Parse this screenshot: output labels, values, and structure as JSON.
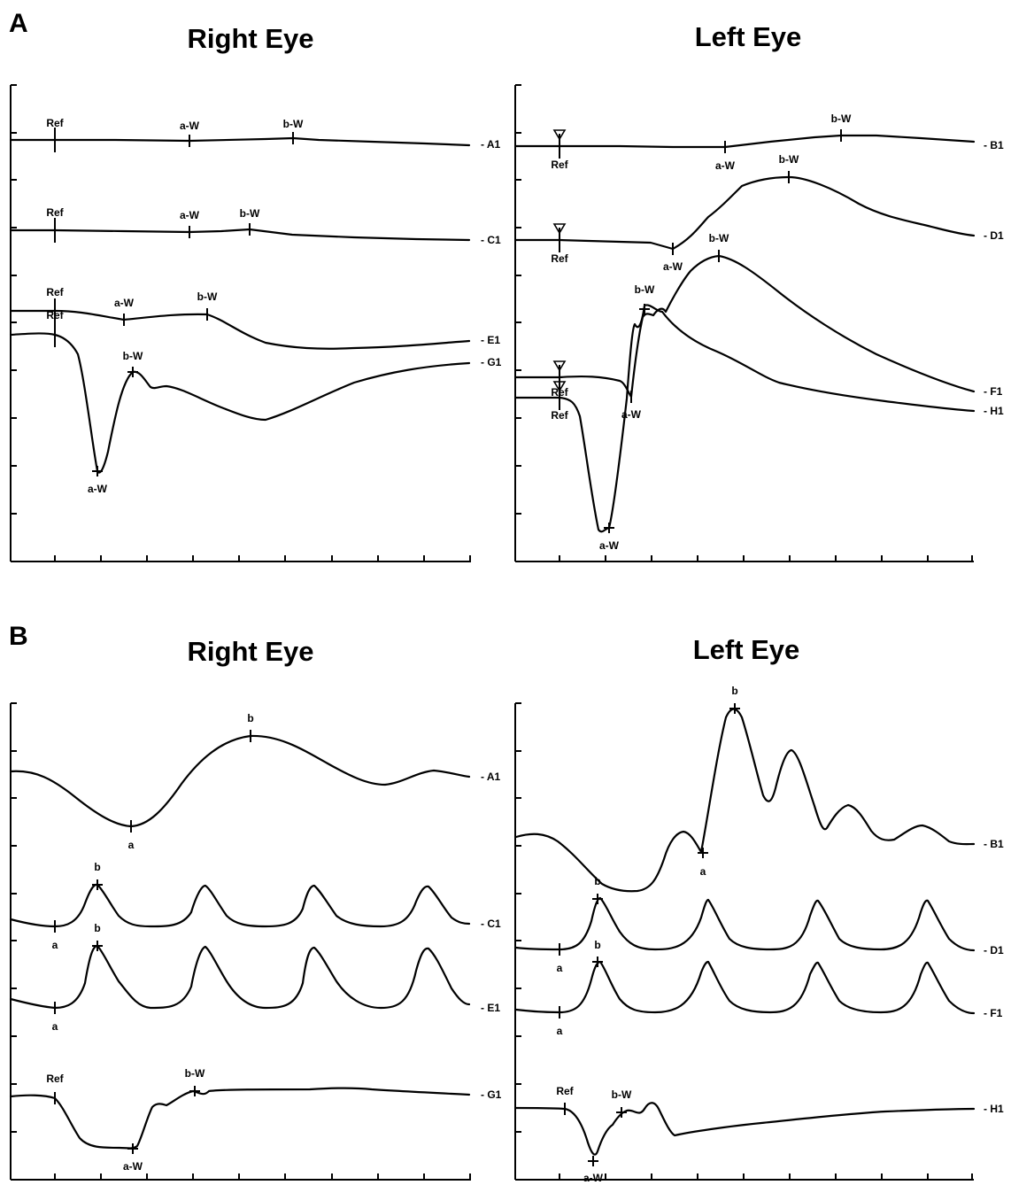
{
  "sections": [
    {
      "letter": "A",
      "panels": [
        {
          "title": "Right Eye",
          "traces": [
            {
              "label": "A1",
              "markers": [
                {
                  "text": "Ref",
                  "type": "ref"
                },
                {
                  "text": "a-W",
                  "type": "tick"
                },
                {
                  "text": "b-W",
                  "type": "tick"
                }
              ]
            },
            {
              "label": "C1",
              "markers": [
                {
                  "text": "Ref",
                  "type": "ref"
                },
                {
                  "text": "a-W",
                  "type": "tick"
                },
                {
                  "text": "b-W",
                  "type": "tick"
                }
              ]
            },
            {
              "label": "E1",
              "markers": [
                {
                  "text": "Ref",
                  "type": "ref"
                },
                {
                  "text": "a-W",
                  "type": "tick"
                },
                {
                  "text": "b-W",
                  "type": "tick"
                }
              ]
            },
            {
              "label": "G1",
              "markers": [
                {
                  "text": "Ref",
                  "type": "ref"
                },
                {
                  "text": "a-W",
                  "type": "cross"
                },
                {
                  "text": "b-W",
                  "type": "cross"
                }
              ]
            }
          ]
        },
        {
          "title": "Left Eye",
          "traces": [
            {
              "label": "B1",
              "markers": [
                {
                  "text": "Ref",
                  "type": "ref"
                },
                {
                  "text": "a-W",
                  "type": "tick"
                },
                {
                  "text": "b-W",
                  "type": "tick"
                }
              ]
            },
            {
              "label": "D1",
              "markers": [
                {
                  "text": "Ref",
                  "type": "ref"
                },
                {
                  "text": "a-W",
                  "type": "tick"
                },
                {
                  "text": "b-W",
                  "type": "tick"
                }
              ]
            },
            {
              "label": "F1",
              "markers": [
                {
                  "text": "Ref",
                  "type": "ref"
                },
                {
                  "text": "a-W",
                  "type": "tick"
                },
                {
                  "text": "b-W",
                  "type": "tick"
                }
              ]
            },
            {
              "label": "H1",
              "markers": [
                {
                  "text": "Ref",
                  "type": "ref"
                },
                {
                  "text": "a-W",
                  "type": "cross"
                },
                {
                  "text": "b-W",
                  "type": "cross"
                }
              ]
            }
          ]
        }
      ]
    },
    {
      "letter": "B",
      "panels": [
        {
          "title": "Right Eye",
          "traces": [
            {
              "label": "A1",
              "markers": [
                {
                  "text": "a",
                  "type": "tick"
                },
                {
                  "text": "b",
                  "type": "tick"
                }
              ]
            },
            {
              "label": "C1",
              "markers": [
                {
                  "text": "a",
                  "type": "tick"
                },
                {
                  "text": "b",
                  "type": "cross"
                }
              ]
            },
            {
              "label": "E1",
              "markers": [
                {
                  "text": "a",
                  "type": "tick"
                },
                {
                  "text": "b",
                  "type": "cross"
                }
              ]
            },
            {
              "label": "G1",
              "markers": [
                {
                  "text": "Ref",
                  "type": "tick"
                },
                {
                  "text": "a-W",
                  "type": "cross"
                },
                {
                  "text": "b-W",
                  "type": "cross"
                }
              ]
            }
          ]
        },
        {
          "title": "Left Eye",
          "traces": [
            {
              "label": "B1",
              "markers": [
                {
                  "text": "a",
                  "type": "cross"
                },
                {
                  "text": "b",
                  "type": "cross"
                }
              ]
            },
            {
              "label": "D1",
              "markers": [
                {
                  "text": "a",
                  "type": "tick"
                },
                {
                  "text": "b",
                  "type": "cross"
                }
              ]
            },
            {
              "label": "F1",
              "markers": [
                {
                  "text": "a",
                  "type": "tick"
                },
                {
                  "text": "b",
                  "type": "cross"
                }
              ]
            },
            {
              "label": "H1",
              "markers": [
                {
                  "text": "Ref",
                  "type": "tick"
                },
                {
                  "text": "a-W",
                  "type": "cross"
                },
                {
                  "text": "b-W",
                  "type": "cross"
                }
              ]
            }
          ]
        }
      ]
    }
  ],
  "chart_data": [
    {
      "type": "line",
      "section": "A",
      "title": "Right Eye",
      "xlabel": "",
      "ylabel": "",
      "grid": false,
      "axis_tick_counts": {
        "x": 10,
        "y": 9
      },
      "series": [
        {
          "name": "A1",
          "x": [
            0,
            0.5,
            1,
            1.5,
            2,
            2.5,
            3,
            3.5,
            4,
            4.5,
            5
          ],
          "y": [
            0.25,
            0.25,
            0.2,
            0.15,
            0.1,
            0.1,
            0.0,
            -0.1,
            -0.15,
            -0.15,
            -0.15
          ]
        },
        {
          "name": "C1",
          "x": [
            0,
            1,
            2,
            3,
            4,
            5
          ],
          "y": [
            0.4,
            0.35,
            0.2,
            0.2,
            -0.25,
            -0.3
          ]
        },
        {
          "name": "E1",
          "x": [
            0,
            0.5,
            1,
            1.5,
            2,
            2.5,
            3,
            3.5,
            4,
            4.5,
            5
          ],
          "y": [
            0.3,
            0.25,
            0.0,
            0.2,
            0.15,
            -0.6,
            -0.85,
            -0.8,
            -0.7,
            -0.6,
            -0.6
          ]
        },
        {
          "name": "G1",
          "x": [
            0,
            0.5,
            1,
            1.5,
            2,
            2.5,
            3,
            3.5,
            4,
            4.5,
            5
          ],
          "y": [
            0.3,
            0.25,
            -2.9,
            -0.55,
            -0.9,
            -1.35,
            -1.7,
            -1.2,
            -0.7,
            -0.5,
            -0.5
          ]
        }
      ]
    },
    {
      "type": "line",
      "section": "A",
      "title": "Left Eye",
      "xlabel": "",
      "ylabel": "",
      "grid": false,
      "axis_tick_counts": {
        "x": 10,
        "y": 9
      },
      "series": [
        {
          "name": "B1",
          "x": [
            0,
            1,
            2,
            3,
            4,
            5
          ],
          "y": [
            0.1,
            0.1,
            0.05,
            0.1,
            0.25,
            0.15
          ]
        },
        {
          "name": "D1",
          "x": [
            0,
            1,
            2,
            3,
            4,
            5
          ],
          "y": [
            0.15,
            0.0,
            1.25,
            1.3,
            0.95,
            0.15
          ]
        },
        {
          "name": "F1",
          "x": [
            0,
            1,
            1.5,
            2,
            3,
            4,
            5
          ],
          "y": [
            0.1,
            0.0,
            1.7,
            3.0,
            2.2,
            1.2,
            0.0
          ]
        },
        {
          "name": "H1",
          "x": [
            0,
            0.5,
            1,
            1.5,
            2,
            3,
            4,
            5
          ],
          "y": [
            0.0,
            -2.75,
            0.0,
            1.8,
            1.2,
            0.3,
            0.0,
            -0.3
          ]
        }
      ]
    },
    {
      "type": "line",
      "section": "B",
      "title": "Right Eye",
      "xlabel": "",
      "ylabel": "",
      "grid": false,
      "axis_tick_counts": {
        "x": 10,
        "y": 10
      },
      "series": [
        {
          "name": "A1",
          "x": [
            0,
            1,
            1.4,
            2,
            2.6,
            3,
            3.5,
            4,
            4.5,
            5
          ],
          "y": [
            0.0,
            -0.8,
            -1.2,
            0.0,
            0.8,
            0.5,
            -0.1,
            -0.3,
            0.0,
            -0.1
          ]
        },
        {
          "name": "C1",
          "x": [
            0,
            0.5,
            1,
            1.5,
            2,
            2.5,
            3,
            3.5,
            4,
            4.5,
            5
          ],
          "y": [
            0.0,
            0.0,
            0.85,
            0.0,
            0.0,
            0.85,
            0.0,
            0.85,
            0.0,
            0.85,
            0.0
          ]
        },
        {
          "name": "E1",
          "x": [
            0,
            0.5,
            1,
            1.5,
            2,
            2.5,
            3,
            3.5,
            4,
            4.5,
            5
          ],
          "y": [
            0.0,
            0.0,
            0.85,
            0.0,
            0.0,
            0.85,
            0.0,
            0.85,
            0.0,
            0.85,
            0.0
          ]
        },
        {
          "name": "G1",
          "x": [
            0,
            0.5,
            1,
            1.5,
            2,
            2.5,
            3,
            3.5,
            4,
            4.5,
            5
          ],
          "y": [
            0.0,
            0.0,
            -1.1,
            -1.1,
            0.2,
            0.3,
            0.35,
            0.4,
            0.4,
            0.3,
            0.3
          ]
        }
      ]
    },
    {
      "type": "line",
      "section": "B",
      "title": "Left Eye",
      "xlabel": "",
      "ylabel": "",
      "grid": false,
      "axis_tick_counts": {
        "x": 10,
        "y": 10
      },
      "series": [
        {
          "name": "B1",
          "x": [
            0,
            1,
            1.5,
            2,
            2.5,
            3,
            3.5,
            4,
            4.5,
            5
          ],
          "y": [
            0.2,
            -1.05,
            0.3,
            -0.1,
            2.85,
            1.8,
            0.8,
            0.4,
            0.2,
            0.0
          ]
        },
        {
          "name": "D1",
          "x": [
            0,
            0.5,
            1,
            1.5,
            2,
            2.5,
            3,
            3.5,
            4,
            4.5,
            5
          ],
          "y": [
            0.0,
            0.0,
            0.95,
            0.0,
            0.95,
            0.0,
            0.95,
            0.0,
            0.95,
            0.0,
            0.0
          ]
        },
        {
          "name": "F1",
          "x": [
            0,
            0.5,
            1,
            1.5,
            2,
            2.5,
            3,
            3.5,
            4,
            4.5,
            5
          ],
          "y": [
            0.0,
            0.0,
            0.95,
            0.0,
            0.95,
            0.0,
            0.95,
            0.0,
            0.95,
            0.0,
            0.0
          ]
        },
        {
          "name": "H1",
          "x": [
            0,
            0.5,
            1,
            1.5,
            2,
            2.5,
            3,
            3.5,
            4,
            4.5,
            5
          ],
          "y": [
            0.0,
            0.0,
            -1.2,
            0.1,
            0.1,
            -0.6,
            -0.4,
            -0.2,
            -0.1,
            0.0,
            0.0
          ]
        }
      ]
    }
  ]
}
